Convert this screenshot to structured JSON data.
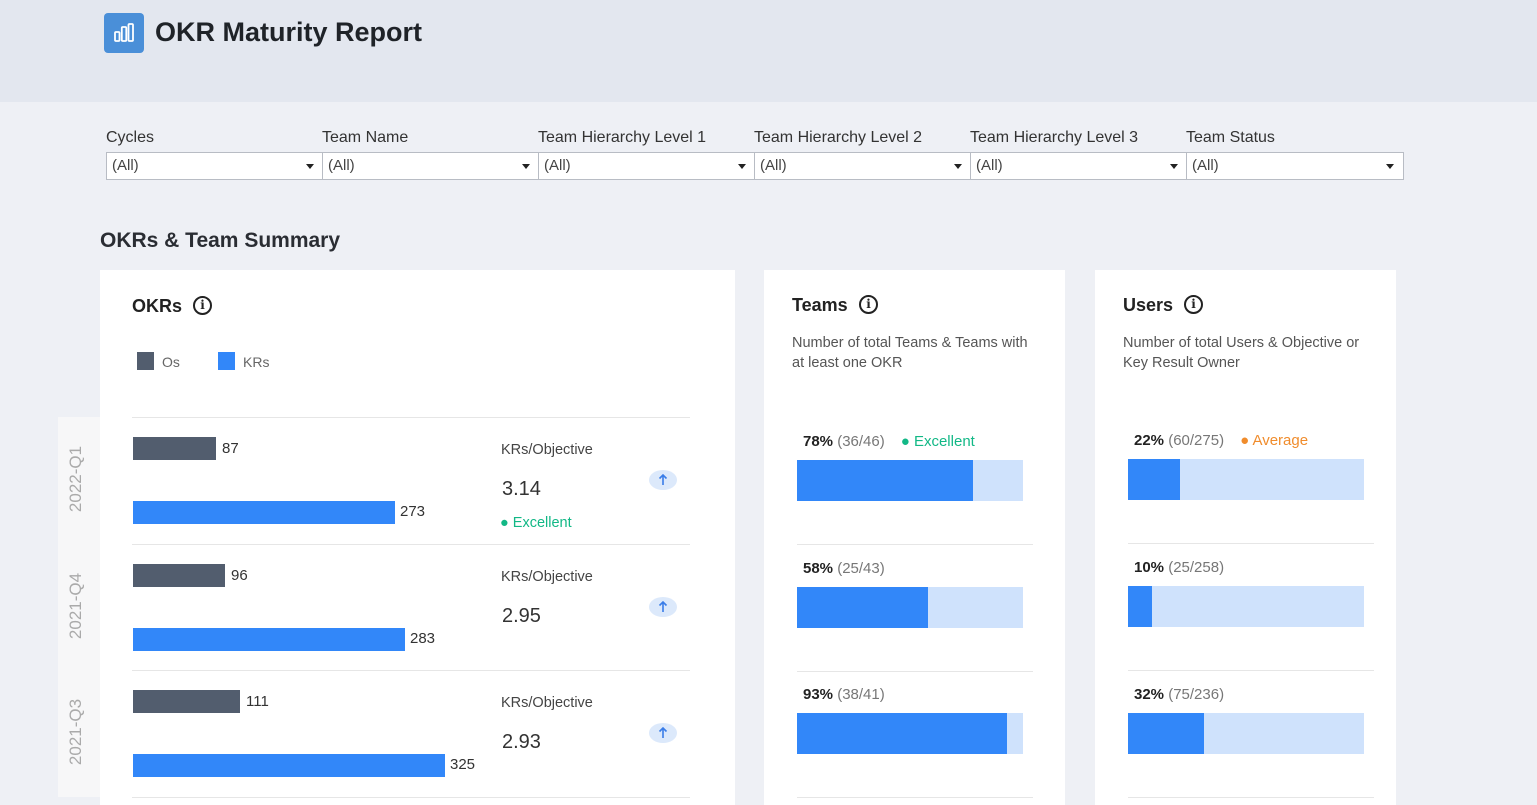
{
  "header": {
    "title": "OKR Maturity Report"
  },
  "filters": [
    {
      "label": "Cycles",
      "value": "(All)"
    },
    {
      "label": "Team Name",
      "value": "(All)"
    },
    {
      "label": "Team Hierarchy Level 1",
      "value": "(All)"
    },
    {
      "label": "Team Hierarchy Level 2",
      "value": "(All)"
    },
    {
      "label": "Team Hierarchy Level 3",
      "value": "(All)"
    },
    {
      "label": "Team Status",
      "value": "(All)"
    }
  ],
  "section_title": "OKRs & Team Summary",
  "okrs": {
    "title": "OKRs",
    "legend": {
      "os": "Os",
      "krs": "KRs"
    },
    "colors": {
      "os": "#525d6e",
      "krs": "#3287f9"
    },
    "ratio_label": "KRs/Objective",
    "rows": [
      {
        "quarter": "2022-Q1",
        "os": 87,
        "krs": 273,
        "ratio": "3.14",
        "status": "Excellent"
      },
      {
        "quarter": "2021-Q4",
        "os": 96,
        "krs": 283,
        "ratio": "2.95",
        "status": ""
      },
      {
        "quarter": "2021-Q3",
        "os": 111,
        "krs": 325,
        "ratio": "2.93",
        "status": ""
      }
    ]
  },
  "teams": {
    "title": "Teams",
    "description": "Number of total Teams & Teams with at least one OKR",
    "rows": [
      {
        "pct": "78%",
        "frac": "(36/46)",
        "fraction": 0.78,
        "status": "Excellent"
      },
      {
        "pct": "58%",
        "frac": "(25/43)",
        "fraction": 0.58,
        "status": ""
      },
      {
        "pct": "93%",
        "frac": "(38/41)",
        "fraction": 0.93,
        "status": ""
      }
    ]
  },
  "users": {
    "title": "Users",
    "description": "Number of total Users & Objective or Key Result Owner",
    "rows": [
      {
        "pct": "22%",
        "frac": "(60/275)",
        "fraction": 0.22,
        "status": "Average"
      },
      {
        "pct": "10%",
        "frac": "(25/258)",
        "fraction": 0.1,
        "status": ""
      },
      {
        "pct": "32%",
        "frac": "(75/236)",
        "fraction": 0.32,
        "status": ""
      }
    ]
  }
}
